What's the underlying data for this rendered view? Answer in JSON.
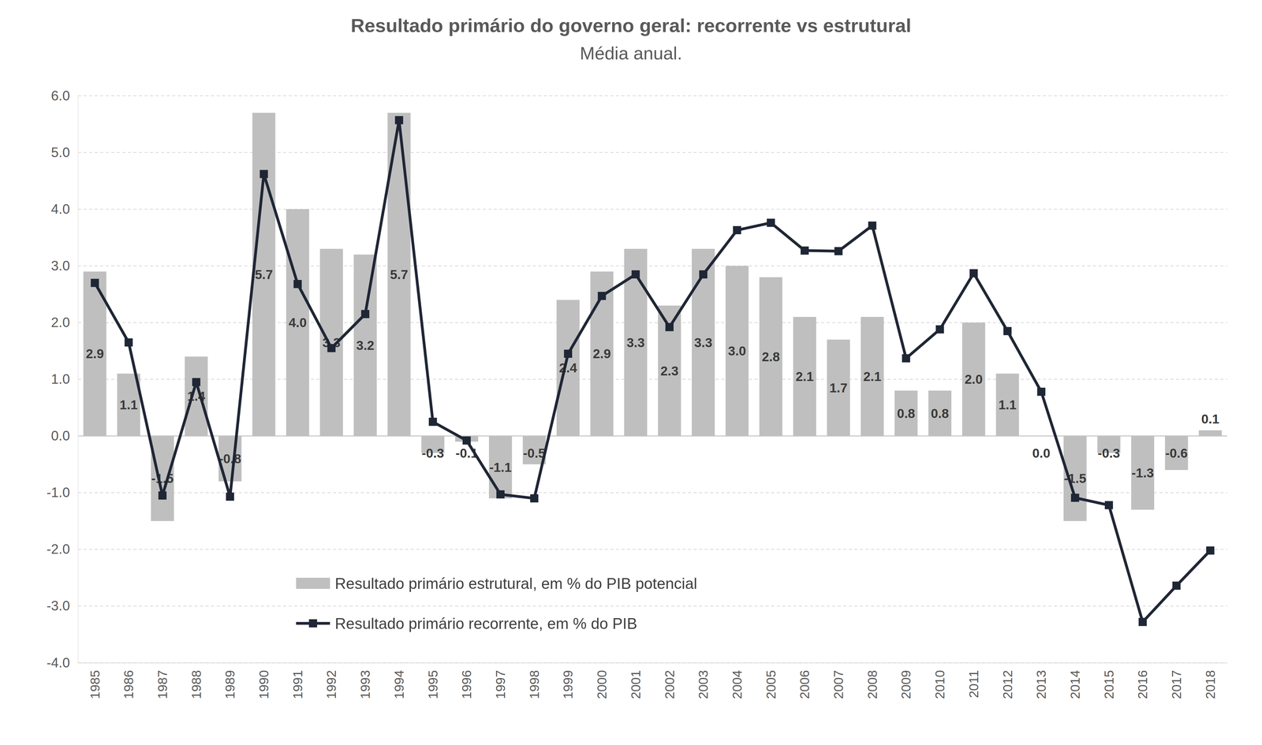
{
  "chart_data": {
    "type": "bar",
    "title": "Resultado primário do governo geral: recorrente vs estrutural",
    "subtitle": "Média anual.",
    "categories": [
      "1985",
      "1986",
      "1987",
      "1988",
      "1989",
      "1990",
      "1991",
      "1992",
      "1993",
      "1994",
      "1995",
      "1996",
      "1997",
      "1998",
      "1999",
      "2000",
      "2001",
      "2002",
      "2003",
      "2004",
      "2005",
      "2006",
      "2007",
      "2008",
      "2009",
      "2010",
      "2011",
      "2012",
      "2013",
      "2014",
      "2015",
      "2016",
      "2017",
      "2018"
    ],
    "series": [
      {
        "name": "Resultado primário estrutural, em % do PIB potencial",
        "type": "bar",
        "color": "#bfbfbf",
        "data_labels": true,
        "values": [
          2.9,
          1.1,
          -1.5,
          1.4,
          -0.8,
          5.7,
          4.0,
          3.3,
          3.2,
          5.7,
          -0.3,
          -0.1,
          -1.1,
          -0.5,
          2.4,
          2.9,
          3.3,
          2.3,
          3.3,
          3.0,
          2.8,
          2.1,
          1.7,
          2.1,
          0.8,
          0.8,
          2.0,
          1.1,
          0.0,
          -1.5,
          -0.3,
          -1.3,
          -0.6,
          0.1
        ]
      },
      {
        "name": "Resultado primário recorrente, em % do PIB",
        "type": "line",
        "color": "#1f2635",
        "marker": "square",
        "line_style": "solid",
        "values": [
          2.7,
          1.65,
          -1.05,
          0.95,
          -1.07,
          4.62,
          2.68,
          1.55,
          2.15,
          5.57,
          0.25,
          -0.08,
          -1.03,
          -1.1,
          1.45,
          2.47,
          2.85,
          1.92,
          2.85,
          3.63,
          3.76,
          3.27,
          3.26,
          3.71,
          1.37,
          1.88,
          2.87,
          1.85,
          0.78,
          -1.09,
          -1.22,
          -3.28,
          -2.64,
          -2.02
        ]
      }
    ],
    "ylim": [
      -4,
      6
    ],
    "yticks": [
      {
        "value": -4,
        "label": "-4.0"
      },
      {
        "value": -3,
        "label": "-3.0"
      },
      {
        "value": -2,
        "label": "-2.0"
      },
      {
        "value": -1,
        "label": "-1.0"
      },
      {
        "value": 0,
        "label": "0.0"
      },
      {
        "value": 1,
        "label": "1.0"
      },
      {
        "value": 2,
        "label": "2.0"
      },
      {
        "value": 3,
        "label": "3.0"
      },
      {
        "value": 4,
        "label": "4.0"
      },
      {
        "value": 5,
        "label": "5.0"
      },
      {
        "value": 6,
        "label": "6.0"
      }
    ],
    "grid": true,
    "legend": "lower left"
  }
}
